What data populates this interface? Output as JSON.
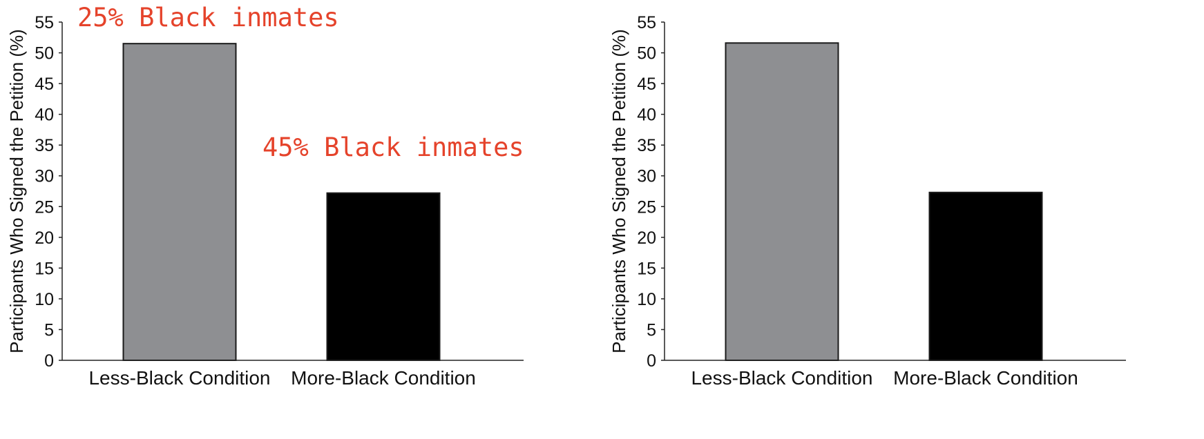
{
  "chart_data": [
    {
      "type": "bar",
      "categories": [
        "Less-Black Condition",
        "More-Black Condition"
      ],
      "values": [
        51.5,
        27.2
      ],
      "ylabel": "Participants Who Signed the Petition (%)",
      "xlabel": "",
      "ylim": [
        0,
        55
      ],
      "yticks": [
        0,
        5,
        10,
        15,
        20,
        25,
        30,
        35,
        40,
        45,
        50,
        55
      ],
      "grid": false,
      "bar_colors": [
        "#8e8f92",
        "#000000"
      ],
      "annotations": [
        "25% Black inmates",
        "45% Black inmates"
      ],
      "annotation_color": "#e5432b"
    },
    {
      "type": "bar",
      "categories": [
        "Less-Black Condition",
        "More-Black Condition"
      ],
      "values": [
        51.6,
        27.3
      ],
      "ylabel": "Participants Who Signed the Petition (%)",
      "xlabel": "",
      "ylim": [
        0,
        55
      ],
      "yticks": [
        0,
        5,
        10,
        15,
        20,
        25,
        30,
        35,
        40,
        45,
        50,
        55
      ],
      "grid": false,
      "bar_colors": [
        "#8e8f92",
        "#000000"
      ],
      "annotations": []
    }
  ]
}
